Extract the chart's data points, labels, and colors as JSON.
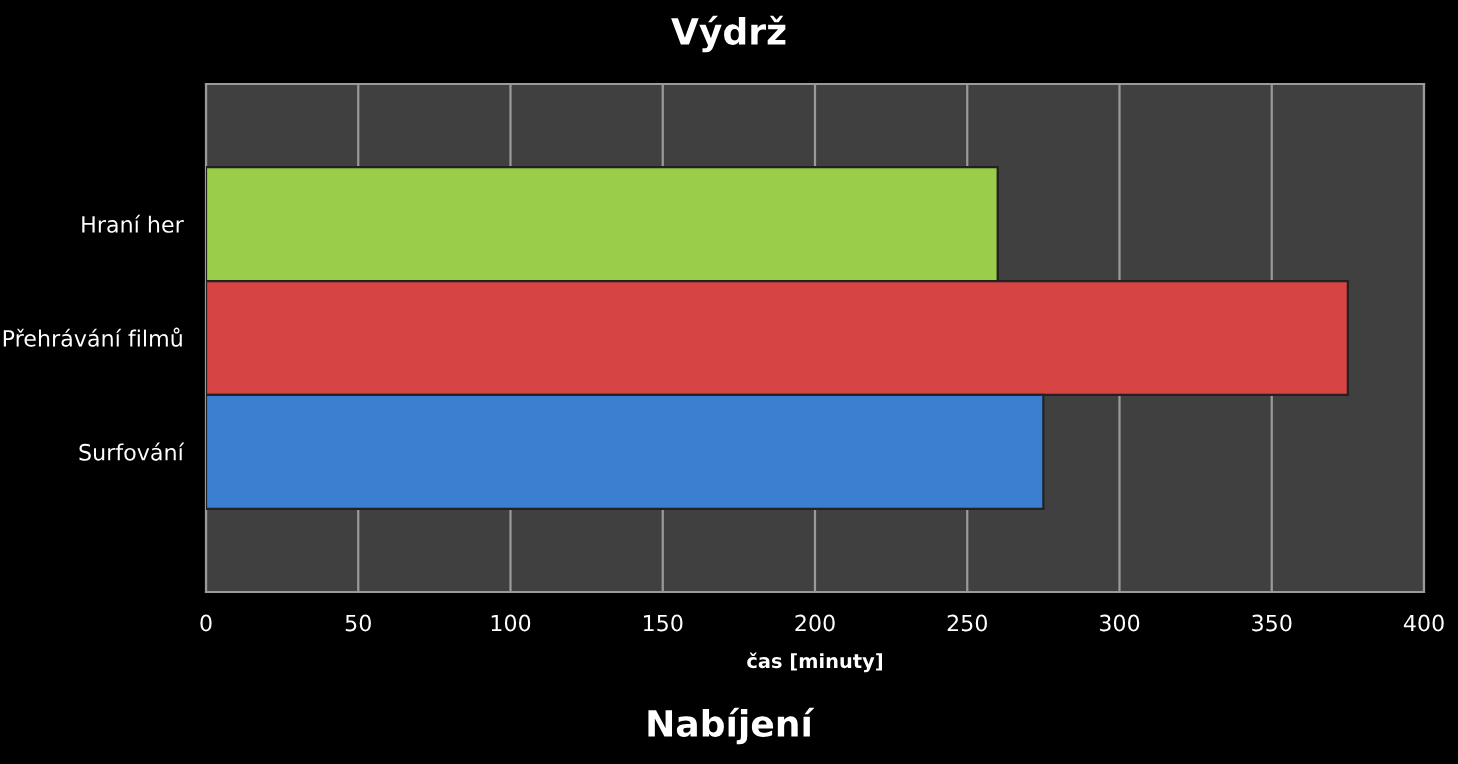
{
  "chart_data": {
    "type": "bar",
    "orientation": "horizontal",
    "title": "Výdrž",
    "xlabel": "čas [minuty]",
    "categories": [
      "Hraní her",
      "Přehrávání filmů",
      "Surfování"
    ],
    "values": [
      260,
      375,
      275
    ],
    "colors": [
      "#9acd4a",
      "#d64444",
      "#3a7fd0"
    ],
    "xlim": [
      0,
      400
    ],
    "xticks": [
      0,
      50,
      100,
      150,
      200,
      250,
      300,
      350,
      400
    ],
    "grid": "x",
    "legend": false,
    "annotations": [
      "Nabíjení"
    ]
  }
}
